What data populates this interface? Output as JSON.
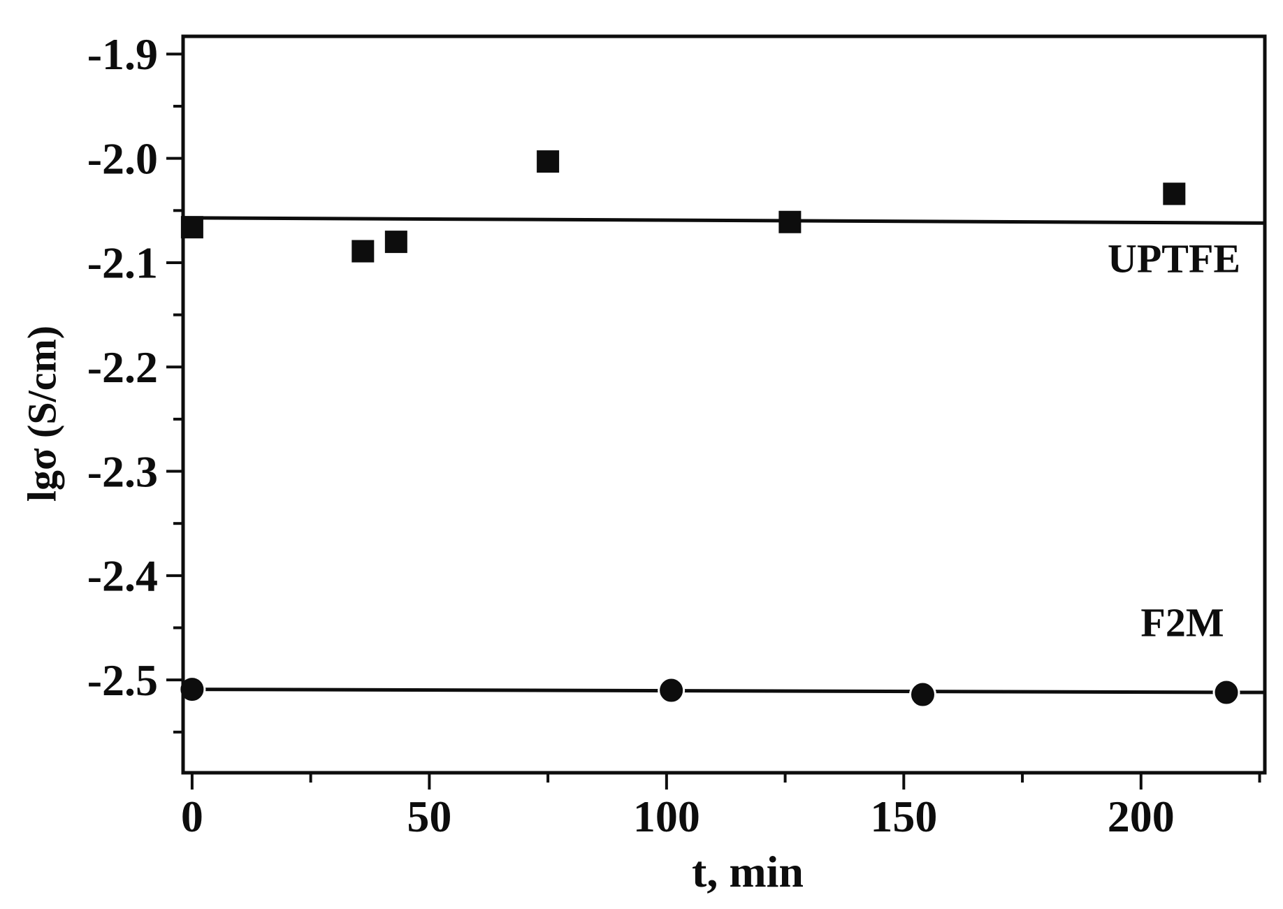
{
  "figure": {
    "background": "#ffffff",
    "ink": "#0d0d0d"
  },
  "chart_data": {
    "type": "scatter",
    "title": "",
    "xlabel": "t, min",
    "ylabel": "lgσ (S/cm)",
    "xlim": [
      -1.9,
      226.1
    ],
    "ylim": [
      -2.589,
      -1.883
    ],
    "grid": false,
    "legend_position": "inline-labels",
    "x_ticks": [
      {
        "v": 0,
        "label": "0"
      },
      {
        "v": 50,
        "label": "50"
      },
      {
        "v": 100,
        "label": "100"
      },
      {
        "v": 150,
        "label": "150"
      },
      {
        "v": 200,
        "label": "200"
      }
    ],
    "x_minor_ticks": [
      25,
      75,
      125,
      175,
      225
    ],
    "y_ticks": [
      {
        "v": -1.9,
        "label": "-1.9"
      },
      {
        "v": -2.0,
        "label": "-2.0"
      },
      {
        "v": -2.1,
        "label": "-2.1"
      },
      {
        "v": -2.2,
        "label": "-2.2"
      },
      {
        "v": -2.3,
        "label": "-2.3"
      },
      {
        "v": -2.4,
        "label": "-2.4"
      },
      {
        "v": -2.5,
        "label": "-2.5"
      }
    ],
    "y_minor_ticks": [
      -1.95,
      -2.05,
      -2.15,
      -2.25,
      -2.35,
      -2.45,
      -2.55
    ],
    "series": [
      {
        "name": "UPTFE",
        "marker": "square",
        "color": "#0d0d0d",
        "points": [
          [
            0,
            -2.066
          ],
          [
            36,
            -2.089
          ],
          [
            43,
            -2.08
          ],
          [
            75,
            -2.003
          ],
          [
            126,
            -2.061
          ],
          [
            207,
            -2.034
          ]
        ],
        "fit_line": [
          [
            -1.9,
            -2.057
          ],
          [
            226.1,
            -2.062
          ]
        ],
        "label": {
          "text": "UPTFE"
        }
      },
      {
        "name": "F2M",
        "marker": "circle",
        "color": "#0d0d0d",
        "points": [
          [
            0,
            -2.509
          ],
          [
            101,
            -2.51
          ],
          [
            154,
            -2.514
          ],
          [
            218,
            -2.512
          ]
        ],
        "fit_line": [
          [
            -1.9,
            -2.509
          ],
          [
            226.1,
            -2.512
          ]
        ],
        "label": {
          "text": "F2M"
        }
      }
    ]
  }
}
